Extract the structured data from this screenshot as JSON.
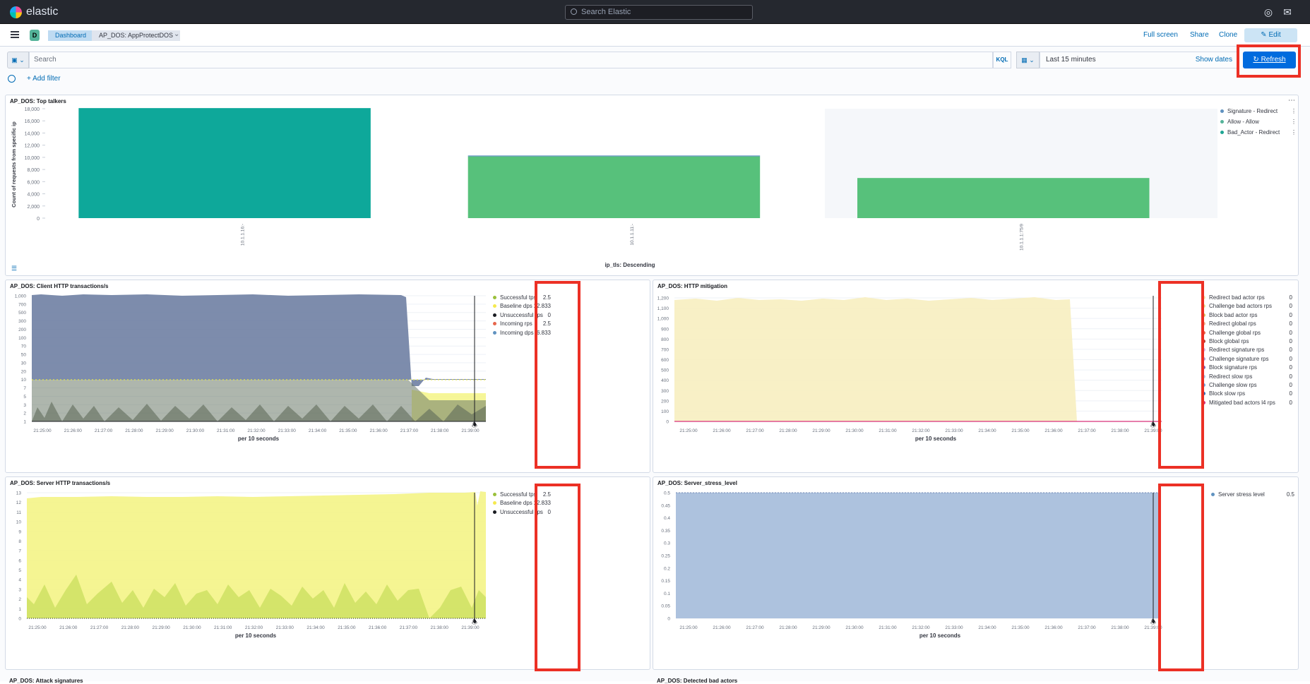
{
  "topbar": {
    "brand": "elastic",
    "search_placeholder": "Search Elastic",
    "icons": [
      "help-icon",
      "notifications-icon"
    ]
  },
  "nav": {
    "space_initial": "D",
    "breadcrumbs": [
      "Dashboard",
      "AP_DOS: AppProtectDOS"
    ],
    "links": [
      "Full screen",
      "Share",
      "Clone"
    ],
    "edit_label": "Edit"
  },
  "query": {
    "placeholder": "Search",
    "language": "KQL",
    "time_range": "Last 15 minutes",
    "show_dates": "Show dates",
    "refresh_label": "Refresh",
    "add_filter": "+ Add filter"
  },
  "colors": {
    "accent": "#006bde",
    "highlight": "#ec3025",
    "teal": "#0ea89a",
    "green": "#57c17b",
    "slate": "#6f87b4",
    "yellow": "#f4f486",
    "olive": "#a5c76c"
  },
  "panels": {
    "top_talkers": {
      "title": "AP_DOS: Top talkers",
      "chart_data": {
        "type": "bar",
        "categories": [
          "10.1.1.16:-",
          "10.1.1.11:-",
          "10.1.1.1:75/9"
        ],
        "series": [
          {
            "name": "Signature - Redirect",
            "values": [
              0,
              150,
              0
            ]
          },
          {
            "name": "Allow - Allow",
            "values": [
              0,
              10150,
              6600
            ]
          },
          {
            "name": "Bad_Actor - Redirect",
            "values": [
              18100,
              0,
              0
            ]
          }
        ],
        "ylabel": "Count of requests from specific ip",
        "xlabel": "ip_tls: Descending",
        "ylim": [
          0,
          18000
        ],
        "yticks": [
          "0",
          "2,000",
          "4,000",
          "6,000",
          "8,000",
          "10,000",
          "12,000",
          "14,000",
          "16,000",
          "18,000"
        ],
        "legend": "right"
      },
      "legend": [
        {
          "label": "Signature - Redirect",
          "color": "#6092c0"
        },
        {
          "label": "Allow - Allow",
          "color": "#54b399"
        },
        {
          "label": "Bad_Actor - Redirect",
          "color": "#1ea593"
        }
      ]
    },
    "client_http": {
      "title": "AP_DOS: Client HTTP transactions/s",
      "chart_data": {
        "type": "area",
        "xlabel": "per 10 seconds",
        "x": [
          "21:25:00",
          "21:26:00",
          "21:27:00",
          "21:28:00",
          "21:29:00",
          "21:30:00",
          "21:31:00",
          "21:32:00",
          "21:33:00",
          "21:34:00",
          "21:35:00",
          "21:36:00",
          "21:37:00",
          "21:38:00",
          "21:39:00"
        ],
        "yticks": [
          "1",
          "2",
          "3",
          "5",
          "7",
          "10",
          "20",
          "30",
          "50",
          "70",
          "100",
          "200",
          "300",
          "500",
          "700",
          "1,000"
        ],
        "yscale": "log",
        "series": [
          {
            "name": "Successful tps",
            "value": "2.5"
          },
          {
            "name": "Baseline dps",
            "value": "12.833"
          },
          {
            "name": "Unsuccessful rps",
            "value": "0"
          },
          {
            "name": "Incoming rps",
            "value": "2.5"
          },
          {
            "name": "Incoming dps",
            "value": "6.833"
          }
        ]
      },
      "legend": [
        {
          "label": "Successful tps",
          "value": "2.5",
          "color": "#9ac03a"
        },
        {
          "label": "Baseline dps",
          "value": "12.833",
          "color": "#f5e94e"
        },
        {
          "label": "Unsuccessful rps",
          "value": "0",
          "color": "#1a1c21"
        },
        {
          "label": "Incoming rps",
          "value": "2.5",
          "color": "#e7664c"
        },
        {
          "label": "Incoming dps",
          "value": "6.833",
          "color": "#6092c0"
        }
      ]
    },
    "http_mitigation": {
      "title": "AP_DOS: HTTP mitigation",
      "chart_data": {
        "type": "area",
        "xlabel": "per 10 seconds",
        "x": [
          "21:25:00",
          "21:26:00",
          "21:27:00",
          "21:28:00",
          "21:29:00",
          "21:30:00",
          "21:31:00",
          "21:32:00",
          "21:33:00",
          "21:34:00",
          "21:35:00",
          "21:36:00",
          "21:37:00",
          "21:38:00",
          "21:39:00"
        ],
        "yticks": [
          "0",
          "100",
          "200",
          "300",
          "400",
          "500",
          "600",
          "700",
          "800",
          "900",
          "1,000",
          "1,100",
          "1,200"
        ],
        "ylim": [
          0,
          1250
        ]
      },
      "legend": [
        {
          "label": "Redirect bad actor rps",
          "value": "0",
          "color": "#f5e6a8"
        },
        {
          "label": "Challenge bad actors rps",
          "value": "0",
          "color": "#e6e08a"
        },
        {
          "label": "Block bad actor rps",
          "value": "0",
          "color": "#d6bf57"
        },
        {
          "label": "Redirect global rps",
          "value": "0",
          "color": "#f1b08b"
        },
        {
          "label": "Challenge global rps",
          "value": "0",
          "color": "#e7664c"
        },
        {
          "label": "Block global rps",
          "value": "0",
          "color": "#b63b2e"
        },
        {
          "label": "Redirect signature rps",
          "value": "0",
          "color": "#d9b3e8"
        },
        {
          "label": "Challenge signature rps",
          "value": "0",
          "color": "#b29bd8"
        },
        {
          "label": "Block signature rps",
          "value": "0",
          "color": "#7a5fb5"
        },
        {
          "label": "Redirect slow rps",
          "value": "0",
          "color": "#a8c6e8"
        },
        {
          "label": "Challenge slow rps",
          "value": "0",
          "color": "#6fa6e0"
        },
        {
          "label": "Block slow rps",
          "value": "0",
          "color": "#2e6db8"
        },
        {
          "label": "Mitigated bad actors l4 rps",
          "value": "0",
          "color": "#d6307a"
        }
      ]
    },
    "server_http": {
      "title": "AP_DOS: Server HTTP transactions/s",
      "chart_data": {
        "type": "area",
        "xlabel": "per 10 seconds",
        "x": [
          "21:25:00",
          "21:26:00",
          "21:27:00",
          "21:28:00",
          "21:29:00",
          "21:30:00",
          "21:31:00",
          "21:32:00",
          "21:33:00",
          "21:34:00",
          "21:35:00",
          "21:36:00",
          "21:37:00",
          "21:38:00",
          "21:39:00"
        ],
        "yticks": [
          "0",
          "1",
          "2",
          "3",
          "4",
          "5",
          "6",
          "7",
          "8",
          "9",
          "10",
          "11",
          "12",
          "13"
        ],
        "ylim": [
          0,
          13
        ]
      },
      "legend": [
        {
          "label": "Successful tps",
          "value": "2.5",
          "color": "#9ac03a"
        },
        {
          "label": "Baseline dps",
          "value": "12.833",
          "color": "#f5e94e"
        },
        {
          "label": "Unsuccessful rps",
          "value": "0",
          "color": "#1a1c21"
        }
      ]
    },
    "server_stress": {
      "title": "AP_DOS: Server_stress_level",
      "chart_data": {
        "type": "area",
        "xlabel": "per 10 seconds",
        "x": [
          "21:25:00",
          "21:26:00",
          "21:27:00",
          "21:28:00",
          "21:29:00",
          "21:30:00",
          "21:31:00",
          "21:32:00",
          "21:33:00",
          "21:34:00",
          "21:35:00",
          "21:36:00",
          "21:37:00",
          "21:38:00",
          "21:39:00"
        ],
        "yticks": [
          "0",
          "0.05",
          "0.1",
          "0.15",
          "0.2",
          "0.25",
          "0.3",
          "0.35",
          "0.4",
          "0.45",
          "0.5"
        ],
        "ylim": [
          0,
          0.5
        ],
        "series": [
          {
            "name": "Server stress level",
            "value": "0.5"
          }
        ]
      },
      "legend": [
        {
          "label": "Server stress level",
          "value": "0.5",
          "color": "#6092c0"
        }
      ]
    },
    "attack_signatures": {
      "title": "AP_DOS: Attack signatures"
    },
    "detected_bad_actors": {
      "title": "AP_DOS: Detected bad actors"
    }
  }
}
